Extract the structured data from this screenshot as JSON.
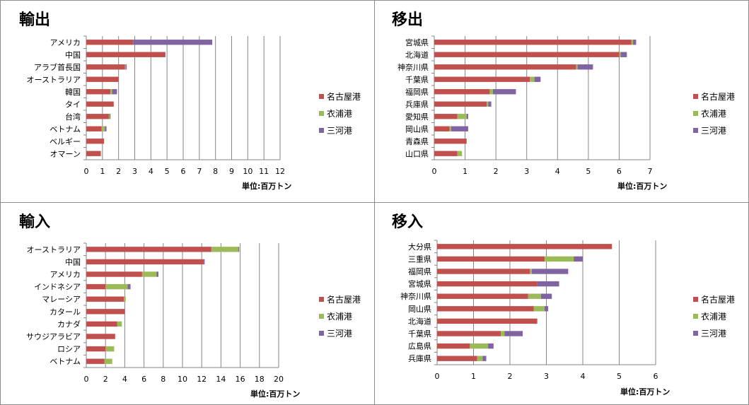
{
  "colors": {
    "nagoya": "#c0504d",
    "kinuura": "#9bbb59",
    "mikawa": "#8064a2",
    "grid": "#868686",
    "border": "#8c8c8c"
  },
  "chart_data": [
    {
      "type": "bar",
      "title": "輸出",
      "unit_label": "単位:百万トン",
      "xlim": [
        0,
        12
      ],
      "xticks": [
        "0",
        "1",
        "2",
        "3",
        "4",
        "5",
        "6",
        "7",
        "8",
        "9",
        "10",
        "11",
        "12"
      ],
      "categories": [
        "アメリカ",
        "中国",
        "アラブ首長国",
        "オーストラリア",
        "韓国",
        "タイ",
        "台湾",
        "ベトナム",
        "ベルギー",
        "オマーン"
      ],
      "series": [
        {
          "name": "名古屋港",
          "values": [
            2.9,
            4.9,
            2.4,
            2.0,
            1.5,
            1.7,
            1.4,
            0.95,
            1.1,
            0.9
          ]
        },
        {
          "name": "衣浦港",
          "values": [
            0,
            0,
            0.05,
            0,
            0.1,
            0,
            0.05,
            0.2,
            0,
            0
          ]
        },
        {
          "name": "三河港",
          "values": [
            4.9,
            0,
            0.05,
            0,
            0.3,
            0,
            0.05,
            0.1,
            0,
            0
          ]
        }
      ],
      "legend": "right"
    },
    {
      "type": "bar",
      "title": "移出",
      "unit_label": "単位:百万トン",
      "xlim": [
        0,
        7
      ],
      "xticks": [
        "0",
        "1",
        "2",
        "3",
        "4",
        "5",
        "6",
        "7"
      ],
      "categories": [
        "宮城県",
        "北海道",
        "神奈川県",
        "千葉県",
        "福岡県",
        "兵庫県",
        "愛知県",
        "岡山県",
        "青森県",
        "山口県"
      ],
      "series": [
        {
          "name": "名古屋港",
          "values": [
            6.4,
            6.0,
            4.6,
            3.1,
            1.8,
            1.7,
            0.75,
            0.5,
            1.05,
            0.75
          ]
        },
        {
          "name": "衣浦港",
          "values": [
            0.05,
            0.05,
            0.05,
            0.15,
            0.1,
            0.05,
            0.3,
            0.05,
            0,
            0.15
          ]
        },
        {
          "name": "三河港",
          "values": [
            0.1,
            0.2,
            0.5,
            0.2,
            0.75,
            0.1,
            0.05,
            0.55,
            0,
            0
          ]
        }
      ],
      "legend": "right"
    },
    {
      "type": "bar",
      "title": "輸入",
      "unit_label": "単位:百万トン",
      "xlim": [
        0,
        20
      ],
      "xticks": [
        "0",
        "2",
        "4",
        "6",
        "8",
        "10",
        "12",
        "14",
        "16",
        "18",
        "20"
      ],
      "categories": [
        "オーストラリア",
        "中国",
        "アメリカ",
        "インドネシア",
        "マレーシア",
        "カタール",
        "カナダ",
        "サウジアラビア",
        "ロシア",
        "ベトナム"
      ],
      "series": [
        {
          "name": "名古屋港",
          "values": [
            13.0,
            12.2,
            5.8,
            2.0,
            3.9,
            4.0,
            3.2,
            3.0,
            2.0,
            1.9
          ]
        },
        {
          "name": "衣浦港",
          "values": [
            2.8,
            0,
            1.5,
            2.3,
            0.2,
            0,
            0.5,
            0,
            0.9,
            0.8
          ]
        },
        {
          "name": "三河港",
          "values": [
            0.1,
            0.1,
            0.2,
            0.3,
            0,
            0,
            0,
            0,
            0,
            0
          ]
        }
      ],
      "legend": "right"
    },
    {
      "type": "bar",
      "title": "移入",
      "unit_label": "単位:百万トン",
      "xlim": [
        0,
        6
      ],
      "xticks": [
        "0",
        "1",
        "2",
        "3",
        "4",
        "5",
        "6"
      ],
      "categories": [
        "大分県",
        "三重県",
        "福岡県",
        "宮城県",
        "神奈川県",
        "岡山県",
        "北海道",
        "千葉県",
        "広島県",
        "兵庫県"
      ],
      "series": [
        {
          "name": "名古屋港",
          "values": [
            4.8,
            2.95,
            2.55,
            2.75,
            2.5,
            2.65,
            2.75,
            1.75,
            0.9,
            1.1
          ]
        },
        {
          "name": "衣浦港",
          "values": [
            0,
            0.8,
            0.05,
            0,
            0.35,
            0.3,
            0,
            0.1,
            0.5,
            0.15
          ]
        },
        {
          "name": "三河港",
          "values": [
            0,
            0.25,
            1.0,
            0.6,
            0.3,
            0.1,
            0,
            0.5,
            0.15,
            0.1
          ]
        }
      ],
      "legend": "right"
    }
  ]
}
